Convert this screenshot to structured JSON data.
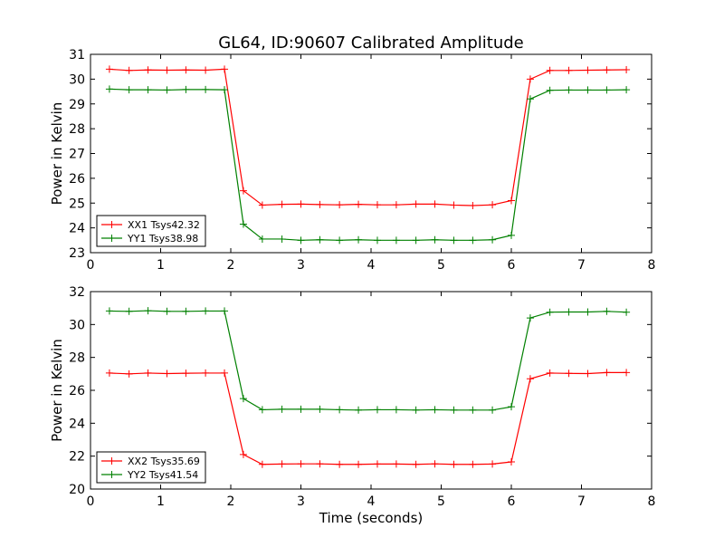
{
  "figure": {
    "title": "GL64, ID:90607 Calibrated Amplitude"
  },
  "chart_data": [
    {
      "type": "line",
      "title": "GL64, ID:90607 Calibrated Amplitude",
      "xlabel": "",
      "ylabel": "Power in Kelvin",
      "xlim": [
        0,
        8
      ],
      "ylim": [
        23,
        31
      ],
      "xticks": [
        0,
        1,
        2,
        3,
        4,
        5,
        6,
        7,
        8
      ],
      "yticks": [
        23,
        24,
        25,
        26,
        27,
        28,
        29,
        30,
        31
      ],
      "grid": false,
      "legend_position": "lower-left",
      "x": [
        0.27,
        0.55,
        0.82,
        1.09,
        1.36,
        1.64,
        1.91,
        2.18,
        2.45,
        2.73,
        3.0,
        3.27,
        3.55,
        3.82,
        4.09,
        4.36,
        4.64,
        4.91,
        5.18,
        5.45,
        5.73,
        6.0,
        6.27,
        6.55,
        6.82,
        7.09,
        7.36,
        7.64
      ],
      "series": [
        {
          "name": "XX1 Tsys42.32",
          "color": "#ff0000",
          "values": [
            30.4,
            30.35,
            30.37,
            30.36,
            30.37,
            30.36,
            30.4,
            25.5,
            24.92,
            24.95,
            24.96,
            24.94,
            24.93,
            24.95,
            24.93,
            24.93,
            24.96,
            24.96,
            24.92,
            24.9,
            24.93,
            25.1,
            30.0,
            30.35,
            30.35,
            30.36,
            30.37,
            30.38
          ]
        },
        {
          "name": "YY1 Tsys38.98",
          "color": "#008000",
          "values": [
            29.6,
            29.57,
            29.57,
            29.56,
            29.58,
            29.58,
            29.57,
            24.15,
            23.55,
            23.55,
            23.5,
            23.52,
            23.5,
            23.52,
            23.5,
            23.5,
            23.5,
            23.52,
            23.5,
            23.5,
            23.52,
            23.7,
            29.2,
            29.55,
            29.56,
            29.56,
            29.56,
            29.57
          ]
        }
      ]
    },
    {
      "type": "line",
      "title": "",
      "xlabel": "Time (seconds)",
      "ylabel": "Power in Kelvin",
      "xlim": [
        0,
        8
      ],
      "ylim": [
        20,
        32
      ],
      "xticks": [
        0,
        1,
        2,
        3,
        4,
        5,
        6,
        7,
        8
      ],
      "yticks": [
        20,
        22,
        24,
        26,
        28,
        30,
        32
      ],
      "grid": false,
      "legend_position": "lower-left",
      "x": [
        0.27,
        0.55,
        0.82,
        1.09,
        1.36,
        1.64,
        1.91,
        2.18,
        2.45,
        2.73,
        3.0,
        3.27,
        3.55,
        3.82,
        4.09,
        4.36,
        4.64,
        4.91,
        5.18,
        5.45,
        5.73,
        6.0,
        6.27,
        6.55,
        6.82,
        7.09,
        7.36,
        7.64
      ],
      "series": [
        {
          "name": "XX2 Tsys35.69",
          "color": "#ff0000",
          "values": [
            27.05,
            27.0,
            27.05,
            27.02,
            27.04,
            27.05,
            27.05,
            22.1,
            21.5,
            21.52,
            21.53,
            21.53,
            21.5,
            21.5,
            21.52,
            21.52,
            21.5,
            21.53,
            21.5,
            21.5,
            21.52,
            21.65,
            26.7,
            27.05,
            27.03,
            27.02,
            27.08,
            27.08
          ]
        },
        {
          "name": "YY2 Tsys41.54",
          "color": "#008000",
          "values": [
            30.82,
            30.8,
            30.84,
            30.8,
            30.8,
            30.82,
            30.82,
            25.5,
            24.82,
            24.85,
            24.85,
            24.85,
            24.82,
            24.8,
            24.82,
            24.82,
            24.8,
            24.82,
            24.8,
            24.8,
            24.8,
            25.0,
            30.4,
            30.75,
            30.76,
            30.76,
            30.8,
            30.75
          ]
        }
      ]
    }
  ]
}
